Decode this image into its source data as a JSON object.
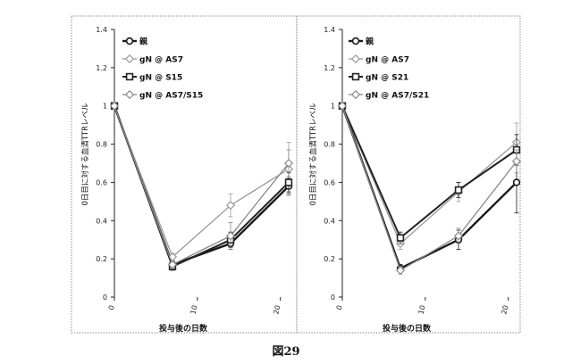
{
  "figure": {
    "caption": "図29"
  },
  "chart_data": [
    {
      "type": "line",
      "xlabel": "投与後の日数",
      "ylabel": "0日目に対する血清TTRレベル",
      "xlim": [
        0,
        21
      ],
      "ylim": [
        0,
        1.4
      ],
      "x_ticks": [
        "0",
        "10",
        "20"
      ],
      "y_ticks": [
        "0",
        "0.2",
        "0.4",
        "0.6",
        "0.8",
        "1",
        "1.2",
        "1.4"
      ],
      "x": [
        0,
        7,
        14,
        21
      ],
      "series": [
        {
          "name": "親",
          "values": [
            1,
            0.17,
            0.28,
            0.58
          ],
          "err": [
            0,
            0.02,
            0.03,
            0.04
          ],
          "marker": "circle",
          "color": "#1a1a1a",
          "width": 2.4
        },
        {
          "name": "gN @ AS7",
          "values": [
            1,
            0.21,
            0.48,
            0.67
          ],
          "err": [
            0,
            0.02,
            0.06,
            0.14
          ],
          "marker": "diamond",
          "color": "#9a9a9a",
          "width": 1.3
        },
        {
          "name": "gN @ S15",
          "values": [
            1,
            0.16,
            0.3,
            0.6
          ],
          "err": [
            0,
            0.02,
            0.04,
            0.05
          ],
          "marker": "square",
          "color": "#222222",
          "width": 2.0
        },
        {
          "name": "gN @ AS7/S15",
          "values": [
            1,
            0.17,
            0.32,
            0.7
          ],
          "err": [
            0,
            0.02,
            0.07,
            0.07
          ],
          "marker": "diamond",
          "color": "#888888",
          "width": 1.3
        }
      ]
    },
    {
      "type": "line",
      "xlabel": "投与後の日数",
      "ylabel": "0日目に対する血清TTRレベル",
      "xlim": [
        0,
        21
      ],
      "ylim": [
        0,
        1.4
      ],
      "x_ticks": [
        "0",
        "10",
        "20"
      ],
      "y_ticks": [
        "0",
        "0.2",
        "0.4",
        "0.6",
        "0.8",
        "1",
        "1.2",
        "1.4"
      ],
      "x": [
        0,
        7,
        14,
        21
      ],
      "series": [
        {
          "name": "親",
          "values": [
            1,
            0.15,
            0.3,
            0.6
          ],
          "err": [
            0,
            0.02,
            0.05,
            0.16
          ],
          "marker": "circle",
          "color": "#1a1a1a",
          "width": 2.4
        },
        {
          "name": "gN @ AS7",
          "values": [
            1,
            0.28,
            0.55,
            0.81
          ],
          "err": [
            0,
            0.03,
            0.05,
            0.1
          ],
          "marker": "diamond",
          "color": "#9a9a9a",
          "width": 1.3
        },
        {
          "name": "gN @ S21",
          "values": [
            1,
            0.31,
            0.56,
            0.77
          ],
          "err": [
            0,
            0.03,
            0.04,
            0.08
          ],
          "marker": "square",
          "color": "#222222",
          "width": 2.0
        },
        {
          "name": "gN @ AS7/S21",
          "values": [
            1,
            0.14,
            0.32,
            0.71
          ],
          "err": [
            0,
            0.02,
            0.04,
            0.06
          ],
          "marker": "diamond",
          "color": "#888888",
          "width": 1.3
        }
      ]
    }
  ]
}
